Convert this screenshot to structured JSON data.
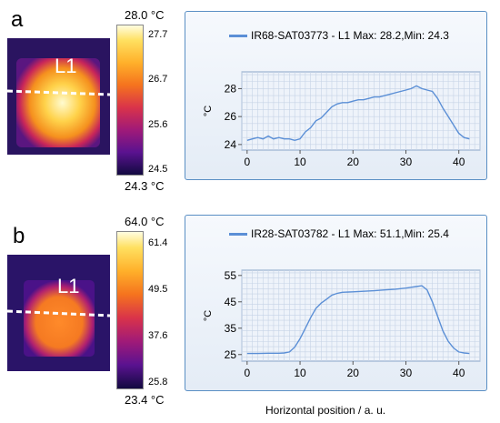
{
  "panels": [
    {
      "letter": "a",
      "image_label": "L1",
      "colorbar": {
        "max_label": "28.0 °C",
        "min_label": "24.3 °C",
        "ticks": [
          "27.7",
          "26.7",
          "25.6",
          "24.5"
        ],
        "tick_values": [
          27.7,
          26.7,
          25.6,
          24.5
        ],
        "range": [
          24.3,
          28.0
        ]
      },
      "legend": "IR68-SAT03773 - L1 Max: 28.2,Min: 24.3"
    },
    {
      "letter": "b",
      "image_label": "L1",
      "colorbar": {
        "max_label": "64.0 °C",
        "min_label": "23.4 °C",
        "ticks": [
          "61.4",
          "49.5",
          "37.6",
          "25.8"
        ],
        "tick_values": [
          61.4,
          49.5,
          37.6,
          25.8
        ],
        "range": [
          23.4,
          64.0
        ]
      },
      "legend": "IR28-SAT03782 - L1 Max: 51.1,Min: 25.4"
    }
  ],
  "global_xlabel": "Horizontal position / a. u.",
  "chart_data": [
    {
      "type": "line",
      "title": "",
      "xlabel": "",
      "ylabel": "°C",
      "xlim": [
        -1,
        44
      ],
      "ylim": [
        23.6,
        29.2
      ],
      "xticks": [
        0,
        10,
        20,
        30,
        40
      ],
      "yticks": [
        24,
        26,
        28
      ],
      "grid": true,
      "series": [
        {
          "name": "IR68-SAT03773 - L1 Max: 28.2,Min: 24.3",
          "color": "#5b8fd6",
          "x": [
            0,
            1,
            2,
            3,
            4,
            5,
            6,
            7,
            8,
            9,
            10,
            11,
            12,
            13,
            14,
            15,
            16,
            17,
            18,
            19,
            20,
            21,
            22,
            23,
            24,
            25,
            26,
            27,
            28,
            29,
            30,
            31,
            32,
            33,
            34,
            35,
            36,
            37,
            38,
            39,
            40,
            41,
            42
          ],
          "y": [
            24.3,
            24.4,
            24.5,
            24.4,
            24.6,
            24.4,
            24.5,
            24.4,
            24.4,
            24.3,
            24.4,
            24.9,
            25.2,
            25.7,
            25.9,
            26.3,
            26.7,
            26.9,
            27.0,
            27.0,
            27.1,
            27.2,
            27.2,
            27.3,
            27.4,
            27.4,
            27.5,
            27.6,
            27.7,
            27.8,
            27.9,
            28.0,
            28.2,
            28.0,
            27.9,
            27.8,
            27.3,
            26.6,
            26.0,
            25.4,
            24.8,
            24.5,
            24.4
          ]
        }
      ]
    },
    {
      "type": "line",
      "title": "",
      "xlabel": "",
      "ylabel": "°C",
      "xlim": [
        -1,
        44
      ],
      "ylim": [
        22.5,
        57
      ],
      "xticks": [
        0,
        10,
        20,
        30,
        40
      ],
      "yticks": [
        25,
        35,
        45,
        55
      ],
      "grid": true,
      "series": [
        {
          "name": "IR28-SAT03782 - L1 Max: 51.1,Min: 25.4",
          "color": "#5b8fd6",
          "x": [
            0,
            2,
            4,
            6,
            7,
            8,
            9,
            10,
            11,
            12,
            13,
            14,
            15,
            16,
            17,
            18,
            20,
            22,
            24,
            26,
            28,
            30,
            31,
            32,
            33,
            34,
            35,
            36,
            37,
            38,
            39,
            40,
            41,
            42
          ],
          "y": [
            25.4,
            25.4,
            25.5,
            25.5,
            25.6,
            26.0,
            27.8,
            31.0,
            35.0,
            39.0,
            42.5,
            44.5,
            46.0,
            47.5,
            48.2,
            48.6,
            48.8,
            49.0,
            49.2,
            49.5,
            49.8,
            50.2,
            50.5,
            50.8,
            51.1,
            49.5,
            45.0,
            39.5,
            34.0,
            30.0,
            27.5,
            26.0,
            25.6,
            25.4
          ]
        }
      ]
    }
  ]
}
